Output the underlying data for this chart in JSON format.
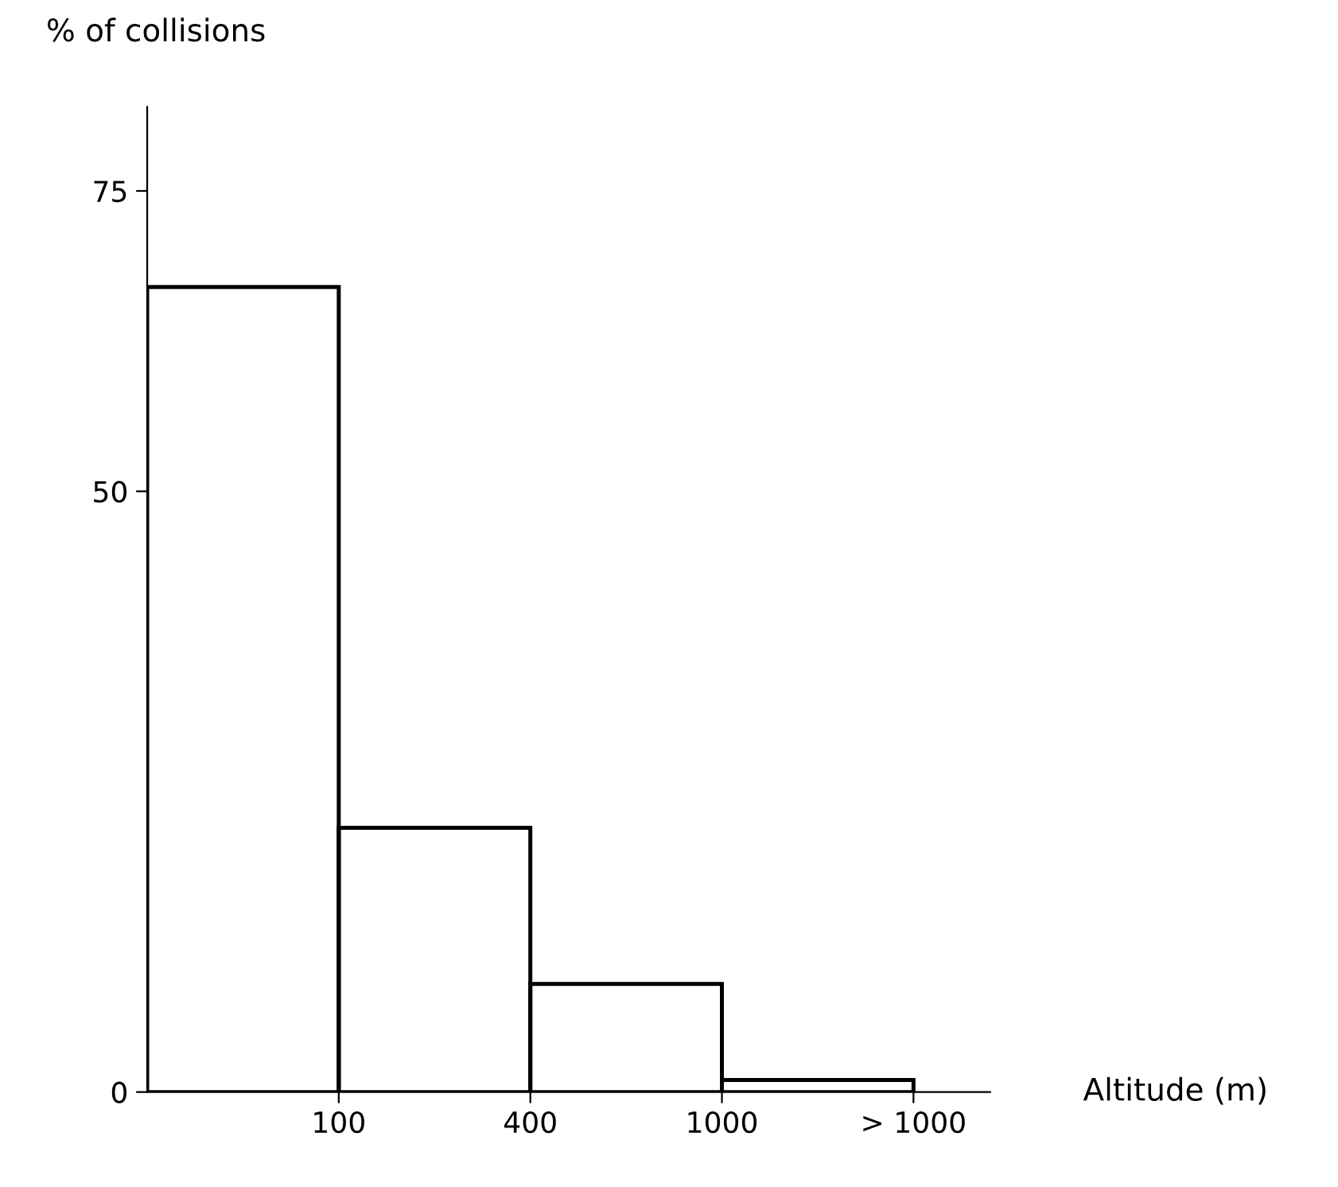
{
  "chart_data": {
    "type": "bar",
    "xlabel": "Altitude (m)",
    "ylabel": "% of collisions",
    "categories": [
      "100",
      "400",
      "1000",
      "> 1000"
    ],
    "values": [
      67,
      22,
      9,
      1
    ],
    "color": "#000000",
    "ylim": [
      0,
      82
    ],
    "yticks": [
      0,
      50,
      75
    ],
    "grid": false,
    "legend": false
  }
}
